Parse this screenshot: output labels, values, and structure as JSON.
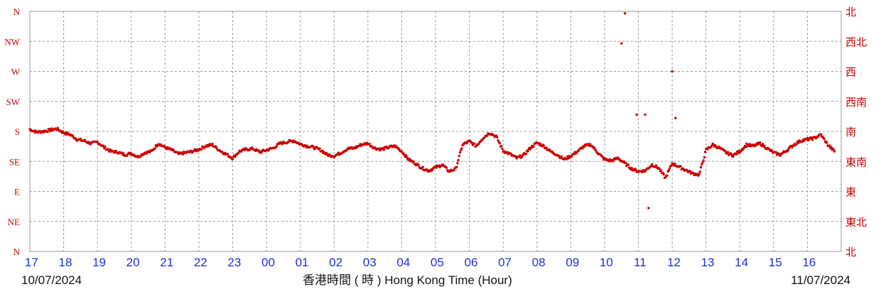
{
  "chart_data": {
    "type": "scatter",
    "xlabel": "香港時間 ( 時 ) Hong Kong Time (Hour)",
    "start_date": "10/07/2024",
    "end_date": "11/07/2024",
    "x_ticks": [
      "17",
      "18",
      "19",
      "20",
      "21",
      "22",
      "23",
      "00",
      "01",
      "02",
      "03",
      "04",
      "05",
      "06",
      "07",
      "08",
      "09",
      "10",
      "11",
      "12",
      "13",
      "14",
      "15",
      "16"
    ],
    "y_ticks_left": [
      "N",
      "NE",
      "E",
      "SE",
      "S",
      "SW",
      "W",
      "NW",
      "N"
    ],
    "y_ticks_right": [
      "北",
      "東北",
      "東",
      "東南",
      "南",
      "西南",
      "西",
      "西北",
      "北"
    ],
    "ylim_degrees": [
      0,
      360
    ],
    "grid": true,
    "colors": {
      "points": "#cc0000",
      "x_ticks": "#1f2fd6",
      "y_ticks": "#cc0000",
      "grid": "#9a9a9a"
    },
    "series": [
      {
        "x_hours": [
          0.0,
          0.2,
          0.4,
          0.6,
          0.8,
          1.0,
          1.2,
          1.4,
          1.6,
          1.8,
          2.0,
          2.2,
          2.4,
          2.6,
          2.8,
          3.0,
          3.2,
          3.4,
          3.6,
          3.8,
          4.0,
          4.2,
          4.4,
          4.6,
          4.8,
          5.0,
          5.2,
          5.4,
          5.6,
          5.8,
          6.0,
          6.2,
          6.4,
          6.6,
          6.8,
          7.0,
          7.2,
          7.4,
          7.6,
          7.8,
          8.0,
          8.2,
          8.4,
          8.6,
          8.8,
          9.0,
          9.2,
          9.4,
          9.6,
          9.8,
          10.0,
          10.2,
          10.4,
          10.6,
          10.8,
          11.0,
          11.2,
          11.4,
          11.6,
          11.8,
          12.0,
          12.2,
          12.4,
          12.6,
          12.8,
          13.0,
          13.2,
          13.4,
          13.6,
          13.8,
          14.0,
          14.2,
          14.4,
          14.6,
          14.8,
          15.0,
          15.2,
          15.4,
          15.6,
          15.8,
          16.0,
          16.2,
          16.4,
          16.6,
          16.8,
          17.0,
          17.2,
          17.4,
          17.6,
          17.8,
          18.0,
          18.2,
          18.4,
          18.6,
          18.8,
          19.0,
          19.2,
          19.4,
          19.6,
          19.8,
          20.0,
          20.2,
          20.4,
          20.6,
          20.8,
          21.0,
          21.2,
          21.4,
          21.6,
          21.8,
          22.0,
          22.2,
          22.4,
          22.6,
          22.8,
          23.0,
          23.2,
          23.4,
          23.6,
          23.8
        ],
        "direction_deg": [
          183,
          179,
          180,
          182,
          184,
          178,
          175,
          168,
          166,
          162,
          164,
          156,
          150,
          149,
          145,
          147,
          142,
          148,
          150,
          162,
          156,
          152,
          146,
          148,
          150,
          153,
          158,
          160,
          152,
          146,
          140,
          150,
          153,
          154,
          149,
          152,
          155,
          162,
          164,
          166,
          161,
          158,
          156,
          152,
          145,
          143,
          148,
          154,
          155,
          160,
          162,
          155,
          153,
          156,
          158,
          150,
          138,
          132,
          125,
          121,
          126,
          130,
          120,
          124,
          160,
          165,
          158,
          170,
          178,
          172,
          151,
          146,
          140,
          144,
          155,
          163,
          158,
          150,
          145,
          138,
          143,
          150,
          158,
          160,
          148,
          138,
          136,
          140,
          132,
          124,
          120,
          121,
          130,
          125,
          110,
          132,
          127,
          122,
          117,
          115,
          152,
          160,
          155,
          148,
          144,
          150,
          160,
          158,
          162,
          155,
          148,
          145,
          152,
          160,
          166,
          168,
          170,
          175,
          160,
          150
        ],
        "outliers_x_hours": [
          17.5,
          17.6,
          17.95,
          18.2,
          18.3,
          19.0,
          19.1
        ],
        "outliers_deg": [
          312,
          357,
          205,
          205,
          65,
          270,
          200
        ]
      }
    ]
  }
}
